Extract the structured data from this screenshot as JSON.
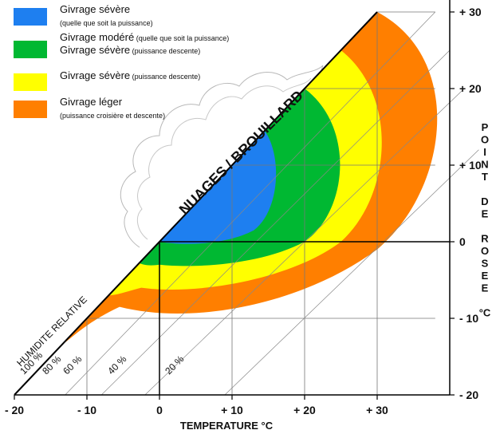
{
  "chart_data": {
    "type": "diagram",
    "legend": [
      {
        "color": "#1e7ff0",
        "lines": [
          {
            "main": "Givrage sévère",
            "small": ""
          },
          {
            "main": "",
            "small": "(quelle que soit la puissance)"
          }
        ]
      },
      {
        "color": "#00b832",
        "lines": [
          {
            "main": "Givrage modéré",
            "small": " (quelle que soit la puissance)"
          },
          {
            "main": "Givrage sévère",
            "small": " (puissance descente)"
          }
        ]
      },
      {
        "color": "#ffff00",
        "lines": [
          {
            "main": "Givrage sévère",
            "small": " (puissance descente)"
          }
        ]
      },
      {
        "color": "#ff7f00",
        "lines": [
          {
            "main": "Givrage léger",
            "small": ""
          },
          {
            "main": "",
            "small": "(puissance croisière et descente)"
          }
        ]
      }
    ],
    "region_label": "NUAGES / BROUILLARD",
    "diagonal_label": "HUMIDITE RELATIVE",
    "rh_labels": [
      "100 %",
      "80 %",
      "60 %",
      "40 %",
      "20 %"
    ],
    "x_axis": {
      "title": "TEMPERATURE °C",
      "ticks": [
        "- 20",
        "- 10",
        "0",
        "+ 10",
        "+ 20",
        "+ 30"
      ],
      "values": [
        -20,
        -10,
        0,
        10,
        20,
        30
      ]
    },
    "y_axis": {
      "title_letters": [
        "P",
        "O",
        "I",
        "N",
        "T",
        "",
        "D",
        "E",
        "",
        "R",
        "O",
        "S",
        "E",
        "E",
        "",
        "°C"
      ],
      "ticks": [
        "+ 30",
        "+ 20",
        "+ 10",
        "0",
        "- 10",
        "- 20"
      ],
      "values": [
        30,
        20,
        10,
        0,
        -10,
        -20
      ]
    },
    "grid": true
  }
}
